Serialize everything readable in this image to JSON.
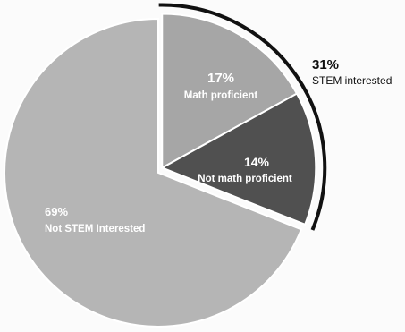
{
  "chart_data": {
    "type": "pie",
    "slices": [
      {
        "value": 17,
        "label": "17%",
        "name": "Math proficient",
        "color": "#a6a6a6",
        "label_color": "#ffffff"
      },
      {
        "value": 14,
        "label": "14%",
        "name": "Not math proficient",
        "color": "#505050",
        "label_color": "#ffffff"
      },
      {
        "value": 69,
        "label": "69%",
        "name": "Not STEM Interested",
        "color": "#b5b5b5",
        "label_color": "#ffffff"
      }
    ],
    "group_bracket": {
      "label": "31%",
      "name": "STEM interested",
      "covers": [
        "Math proficient",
        "Not math proficient"
      ],
      "color": "#111111"
    },
    "exploded_slices": [
      "Math proficient",
      "Not math proficient"
    ]
  }
}
